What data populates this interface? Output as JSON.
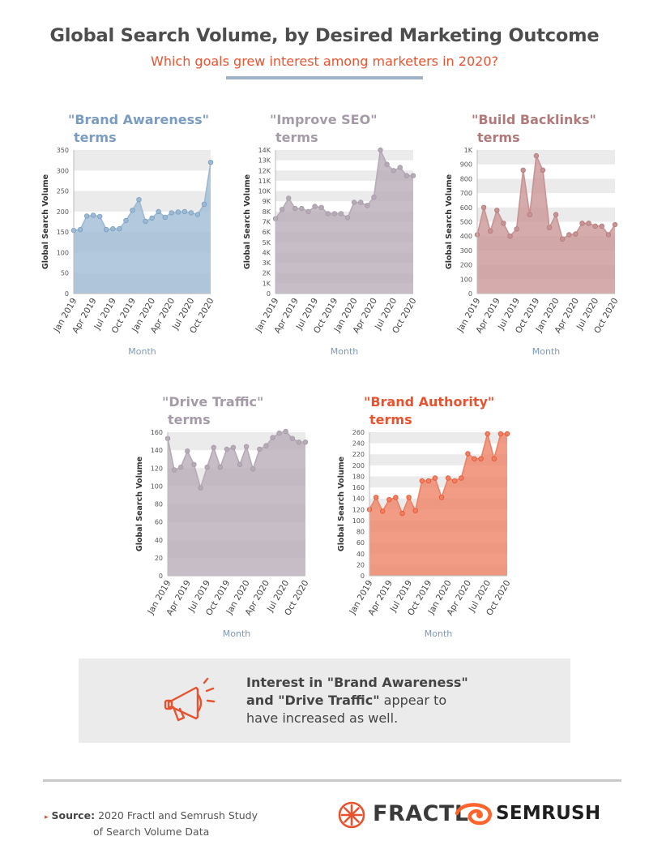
{
  "header": {
    "title": "Global Search Volume, by Desired Marketing Outcome",
    "subtitle": "Which goals grew interest among marketers in 2020?"
  },
  "chart_data": [
    {
      "type": "area",
      "title_line1": "\"Brand Awareness\"",
      "title_line2": "terms",
      "title_color": "#7a9cc2",
      "color": "#9dbad4",
      "xlabel": "Month",
      "ylabel": "Global Search Volume",
      "x_ticks": [
        "Jan 2019",
        "Apr 2019",
        "Jul 2019",
        "Oct 2019",
        "Jan 2020",
        "Apr 2020",
        "Jul 2020",
        "Oct 2020"
      ],
      "y_ticks": [
        "0",
        "50",
        "100",
        "150",
        "200",
        "250",
        "300",
        "350"
      ],
      "ylim": [
        0,
        350
      ],
      "values": [
        154,
        156,
        189,
        191,
        188,
        156,
        158,
        158,
        178,
        203,
        229,
        176,
        184,
        200,
        186,
        197,
        199,
        200,
        197,
        193,
        218,
        320
      ]
    },
    {
      "type": "area",
      "title_line1": "\"Improve SEO\"",
      "title_line2": "terms",
      "title_color": "#a59aa8",
      "color": "#b6aab7",
      "xlabel": "Month",
      "ylabel": "Global Search Volume",
      "x_ticks": [
        "Jan 2019",
        "Apr 2019",
        "Jul 2019",
        "Oct 2019",
        "Jan 2020",
        "Apr 2020",
        "Jul 2020",
        "Oct 2020"
      ],
      "y_ticks": [
        "0",
        "1K",
        "2K",
        "3K",
        "4K",
        "5K",
        "6K",
        "7K",
        "8K",
        "9K",
        "10K",
        "11K",
        "12K",
        "13K",
        "14K"
      ],
      "ylim": [
        0,
        14000
      ],
      "values": [
        7300,
        8200,
        9300,
        8300,
        8300,
        8000,
        8500,
        8400,
        7800,
        7800,
        7800,
        7400,
        8900,
        8900,
        8600,
        9400,
        14000,
        12600,
        12000,
        12300,
        11500,
        11500
      ]
    },
    {
      "type": "area",
      "title_line1": "\"Build Backlinks\"",
      "title_line2": "terms",
      "title_color": "#b07a7a",
      "color": "#c99393",
      "xlabel": "Month",
      "ylabel": "Global Search Volume",
      "x_ticks": [
        "Jan 2019",
        "Apr 2019",
        "Jul 2019",
        "Oct 2019",
        "Jan 2020",
        "Apr 2020",
        "Jul 2020",
        "Oct 2020"
      ],
      "y_ticks": [
        "0",
        "100",
        "200",
        "300",
        "400",
        "500",
        "600",
        "700",
        "800",
        "900",
        "1K"
      ],
      "ylim": [
        0,
        1000
      ],
      "values": [
        410,
        600,
        435,
        580,
        490,
        400,
        450,
        860,
        550,
        960,
        860,
        460,
        550,
        380,
        410,
        415,
        490,
        490,
        470,
        470,
        410,
        480
      ]
    },
    {
      "type": "area",
      "title_line1": "\"Drive Traffic\"",
      "title_line2": "terms",
      "title_color": "#a59aa8",
      "color": "#b6aab7",
      "xlabel": "Month",
      "ylabel": "Global Search Volume",
      "x_ticks": [
        "Jan 2019",
        "Apr 2019",
        "Jul 2019",
        "Oct 2019",
        "Jan 2020",
        "Apr 2020",
        "Jul 2020",
        "Oct 2020"
      ],
      "y_ticks": [
        "0",
        "20",
        "40",
        "60",
        "80",
        "100",
        "120",
        "140",
        "160"
      ],
      "ylim": [
        0,
        160
      ],
      "values": [
        153,
        118,
        121,
        139,
        124,
        98,
        121,
        143,
        121,
        141,
        143,
        124,
        144,
        119,
        141,
        145,
        154,
        159,
        161,
        153,
        149,
        149
      ]
    },
    {
      "type": "area",
      "title_line1": "\"Brand Authority\"",
      "title_line2": "terms",
      "title_color": "#e8532f",
      "color": "#ee8064",
      "xlabel": "Month",
      "ylabel": "Global Search Volume",
      "x_ticks": [
        "Jan 2019",
        "Apr 2019",
        "Jul 2019",
        "Oct 2019",
        "Jan 2020",
        "Apr 2020",
        "Jul 2020",
        "Oct 2020"
      ],
      "y_ticks": [
        "0",
        "20",
        "40",
        "60",
        "80",
        "100",
        "120",
        "140",
        "160",
        "180",
        "200",
        "220",
        "240",
        "260"
      ],
      "ylim": [
        0,
        260
      ],
      "values": [
        120,
        142,
        117,
        138,
        142,
        113,
        142,
        118,
        172,
        172,
        177,
        142,
        177,
        172,
        177,
        221,
        212,
        212,
        257,
        212,
        257,
        257
      ]
    }
  ],
  "callout": {
    "line1": "Interest in \"Brand Awareness\"",
    "line2_bold": "and \"Drive Traffic\"",
    "line2_rest": " appear to",
    "line3": "have increased as well.",
    "icon": "megaphone-icon",
    "icon_color": "#e8532f"
  },
  "footer": {
    "source_label": "Source:",
    "source_line1": "2020 Fractl and Semrush Study",
    "source_line2": "of Search Volume Data",
    "logo1": "FRACTL",
    "logo2": "SEMRUSH",
    "accent_color": "#e8532f"
  }
}
